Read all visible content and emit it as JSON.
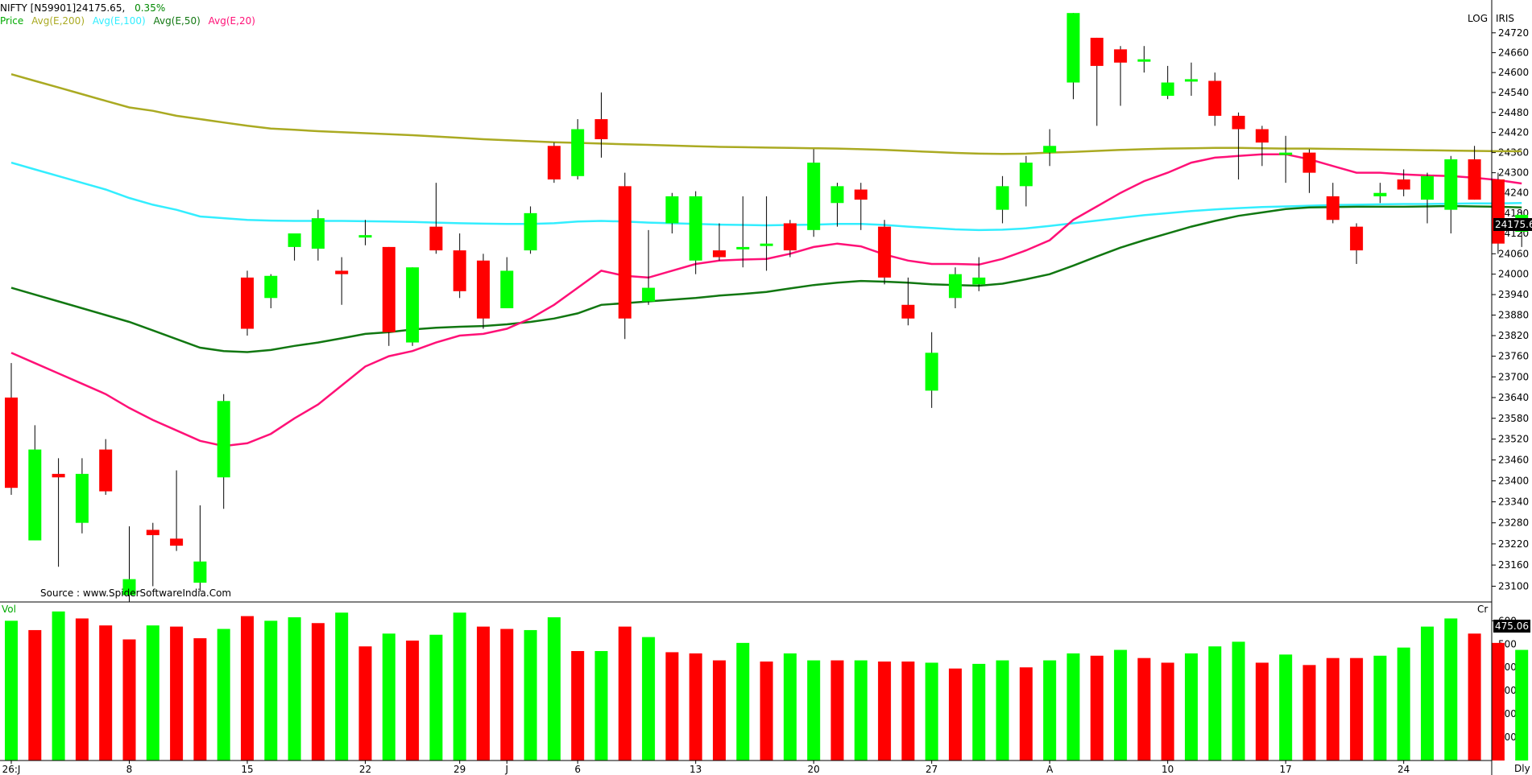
{
  "header": {
    "instrument": "NIFTY [N59901]24175.65,",
    "change": "0.35%",
    "legend_label": "Price",
    "ema200_label": "Avg(E,200)",
    "ema100_label": "Avg(E,100)",
    "ema50_label": "Avg(E,50)",
    "ema20_label": "Avg(E,20)"
  },
  "top_right": {
    "log": "LOG",
    "iris": "IRIS"
  },
  "source_text": "Source : www.SpiderSoftwareIndia.Com",
  "price_tag": "24175.6",
  "volume_tag": "475.06",
  "volume_label": "Vol",
  "volume_unit": "Cr",
  "period": "Dly",
  "colors": {
    "up": "#00ff00",
    "down": "#ff0000",
    "ema200": "#aaaa22",
    "ema100": "#33eeff",
    "ema50": "#117711",
    "ema20": "#ff1177",
    "instrument": "#000000",
    "change": "#008800",
    "price_label": "#00aa00"
  },
  "chart_data": [
    {
      "type": "candlestick",
      "title": "NIFTY [N59901]24175.65, 0.35%",
      "scale": "log",
      "ylim": [
        23060,
        24800
      ],
      "y_ticks": [
        23100,
        23160,
        23220,
        23280,
        23340,
        23400,
        23460,
        23520,
        23580,
        23640,
        23700,
        23760,
        23820,
        23880,
        23940,
        24000,
        24060,
        24120,
        24180,
        24240,
        24300,
        24360,
        24420,
        24480,
        24540,
        24600,
        24660,
        24720
      ],
      "x_tick_labels": [
        {
          "label": "26:J",
          "index": 0
        },
        {
          "label": "8",
          "index": 5
        },
        {
          "label": "15",
          "index": 10
        },
        {
          "label": "22",
          "index": 15
        },
        {
          "label": "29",
          "index": 19
        },
        {
          "label": "J",
          "index": 21
        },
        {
          "label": "6",
          "index": 24
        },
        {
          "label": "13",
          "index": 29
        },
        {
          "label": "20",
          "index": 34
        },
        {
          "label": "27",
          "index": 39
        },
        {
          "label": "A",
          "index": 44
        },
        {
          "label": "10",
          "index": 49
        },
        {
          "label": "17",
          "index": 54
        },
        {
          "label": "24",
          "index": 59
        }
      ],
      "candles": [
        {
          "o": 23640,
          "h": 23740,
          "l": 23360,
          "c": 23380
        },
        {
          "o": 23230,
          "h": 23560,
          "l": 23230,
          "c": 23490
        },
        {
          "o": 23420,
          "h": 23465,
          "l": 23155,
          "c": 23410
        },
        {
          "o": 23280,
          "h": 23465,
          "l": 23250,
          "c": 23420
        },
        {
          "o": 23490,
          "h": 23520,
          "l": 23360,
          "c": 23370
        },
        {
          "o": 23075,
          "h": 23270,
          "l": 23055,
          "c": 23120
        },
        {
          "o": 23260,
          "h": 23280,
          "l": 23100,
          "c": 23245
        },
        {
          "o": 23235,
          "h": 23430,
          "l": 23200,
          "c": 23215
        },
        {
          "o": 23110,
          "h": 23330,
          "l": 23085,
          "c": 23170
        },
        {
          "o": 23410,
          "h": 23650,
          "l": 23320,
          "c": 23630
        },
        {
          "o": 23990,
          "h": 24010,
          "l": 23820,
          "c": 23840
        },
        {
          "o": 23930,
          "h": 24000,
          "l": 23900,
          "c": 23995
        },
        {
          "o": 24080,
          "h": 24110,
          "l": 24040,
          "c": 24120
        },
        {
          "o": 24075,
          "h": 24190,
          "l": 24040,
          "c": 24165
        },
        {
          "o": 24010,
          "h": 24050,
          "l": 23910,
          "c": 24000
        },
        {
          "o": 24110,
          "h": 24160,
          "l": 24085,
          "c": 24115
        },
        {
          "o": 24080,
          "h": 24080,
          "l": 23790,
          "c": 23830
        },
        {
          "o": 23800,
          "h": 24020,
          "l": 23790,
          "c": 24020
        },
        {
          "o": 24140,
          "h": 24270,
          "l": 24060,
          "c": 24070
        },
        {
          "o": 24070,
          "h": 24120,
          "l": 23930,
          "c": 23950
        },
        {
          "o": 24040,
          "h": 24060,
          "l": 23840,
          "c": 23870
        },
        {
          "o": 23900,
          "h": 24050,
          "l": 23900,
          "c": 24010
        },
        {
          "o": 24070,
          "h": 24200,
          "l": 24060,
          "c": 24180
        },
        {
          "o": 24380,
          "h": 24390,
          "l": 24270,
          "c": 24280
        },
        {
          "o": 24290,
          "h": 24460,
          "l": 24280,
          "c": 24430
        },
        {
          "o": 24460,
          "h": 24540,
          "l": 24345,
          "c": 24400
        },
        {
          "o": 24260,
          "h": 24300,
          "l": 23810,
          "c": 23870
        },
        {
          "o": 23920,
          "h": 24130,
          "l": 23910,
          "c": 23960
        },
        {
          "o": 24150,
          "h": 24240,
          "l": 24120,
          "c": 24230
        },
        {
          "o": 24040,
          "h": 24245,
          "l": 24000,
          "c": 24230
        },
        {
          "o": 24070,
          "h": 24150,
          "l": 24040,
          "c": 24050
        },
        {
          "o": 24080,
          "h": 24230,
          "l": 24020,
          "c": 24080
        },
        {
          "o": 24090,
          "h": 24230,
          "l": 24010,
          "c": 24090
        },
        {
          "o": 24150,
          "h": 24160,
          "l": 24050,
          "c": 24070
        },
        {
          "o": 24130,
          "h": 24370,
          "l": 24110,
          "c": 24330
        },
        {
          "o": 24210,
          "h": 24270,
          "l": 24140,
          "c": 24260
        },
        {
          "o": 24250,
          "h": 24270,
          "l": 24130,
          "c": 24220
        },
        {
          "o": 24140,
          "h": 24160,
          "l": 23970,
          "c": 23990
        },
        {
          "o": 23910,
          "h": 23990,
          "l": 23850,
          "c": 23870
        },
        {
          "o": 23660,
          "h": 23830,
          "l": 23610,
          "c": 23770
        },
        {
          "o": 23930,
          "h": 24020,
          "l": 23900,
          "c": 24000
        },
        {
          "o": 23970,
          "h": 24050,
          "l": 23950,
          "c": 23990
        },
        {
          "o": 24190,
          "h": 24290,
          "l": 24150,
          "c": 24260
        },
        {
          "o": 24260,
          "h": 24350,
          "l": 24200,
          "c": 24330
        },
        {
          "o": 24360,
          "h": 24430,
          "l": 24320,
          "c": 24380
        },
        {
          "o": 24570,
          "h": 24780,
          "l": 24520,
          "c": 24780
        },
        {
          "o": 24705,
          "h": 24705,
          "l": 24440,
          "c": 24620
        },
        {
          "o": 24670,
          "h": 24680,
          "l": 24500,
          "c": 24630
        },
        {
          "o": 24640,
          "h": 24680,
          "l": 24600,
          "c": 24640
        },
        {
          "o": 24530,
          "h": 24620,
          "l": 24520,
          "c": 24570
        },
        {
          "o": 24580,
          "h": 24630,
          "l": 24530,
          "c": 24580
        },
        {
          "o": 24575,
          "h": 24600,
          "l": 24440,
          "c": 24470
        },
        {
          "o": 24470,
          "h": 24480,
          "l": 24280,
          "c": 24430
        },
        {
          "o": 24430,
          "h": 24440,
          "l": 24320,
          "c": 24390
        },
        {
          "o": 24360,
          "h": 24410,
          "l": 24270,
          "c": 24360
        },
        {
          "o": 24360,
          "h": 24370,
          "l": 24240,
          "c": 24300
        },
        {
          "o": 24230,
          "h": 24270,
          "l": 24150,
          "c": 24160
        },
        {
          "o": 24140,
          "h": 24150,
          "l": 24030,
          "c": 24070
        },
        {
          "o": 24230,
          "h": 24270,
          "l": 24210,
          "c": 24240
        },
        {
          "o": 24280,
          "h": 24310,
          "l": 24230,
          "c": 24250
        },
        {
          "o": 24220,
          "h": 24300,
          "l": 24150,
          "c": 24290
        },
        {
          "o": 24190,
          "h": 24350,
          "l": 24120,
          "c": 24340
        },
        {
          "o": 24340,
          "h": 24380,
          "l": 24220,
          "c": 24220
        },
        {
          "o": 24280,
          "h": 24300,
          "l": 24060,
          "c": 24090
        },
        {
          "o": 24125,
          "h": 24185,
          "l": 24080,
          "c": 24175
        }
      ],
      "series": [
        {
          "name": "Avg(E,200)",
          "values": [
            24595,
            24575,
            24555,
            24535,
            24515,
            24495,
            24485,
            24470,
            24460,
            24450,
            24440,
            24432,
            24428,
            24424,
            24421,
            24418,
            24415,
            24412,
            24408,
            24404,
            24400,
            24397,
            24394,
            24391,
            24389,
            24387,
            24385,
            24383,
            24381,
            24379,
            24377,
            24376,
            24375,
            24374,
            24373,
            24372,
            24370,
            24368,
            24365,
            24362,
            24359,
            24357,
            24356,
            24357,
            24360,
            24362,
            24365,
            24368,
            24370,
            24372,
            24373,
            24374,
            24374,
            24373,
            24372,
            24372,
            24371,
            24370,
            24369,
            24368,
            24367,
            24366,
            24365,
            24364,
            24364
          ]
        },
        {
          "name": "Avg(E,100)",
          "values": [
            24330,
            24310,
            24290,
            24270,
            24250,
            24225,
            24205,
            24190,
            24170,
            24165,
            24160,
            24158,
            24157,
            24157,
            24157,
            24156,
            24155,
            24154,
            24152,
            24150,
            24149,
            24148,
            24148,
            24150,
            24155,
            24157,
            24155,
            24152,
            24150,
            24148,
            24146,
            24145,
            24144,
            24145,
            24146,
            24148,
            24148,
            24145,
            24140,
            24136,
            24132,
            24130,
            24131,
            24135,
            24142,
            24150,
            24158,
            24166,
            24174,
            24180,
            24186,
            24191,
            24195,
            24198,
            24200,
            24202,
            24204,
            24205,
            24206,
            24207,
            24207,
            24208,
            24209,
            24209,
            24210
          ]
        },
        {
          "name": "Avg(E,50)",
          "values": [
            23960,
            23940,
            23920,
            23900,
            23880,
            23860,
            23835,
            23810,
            23785,
            23775,
            23772,
            23778,
            23790,
            23800,
            23812,
            23825,
            23830,
            23838,
            23843,
            23846,
            23848,
            23853,
            23860,
            23870,
            23885,
            23910,
            23915,
            23920,
            23925,
            23930,
            23937,
            23942,
            23948,
            23958,
            23968,
            23975,
            23980,
            23978,
            23975,
            23970,
            23968,
            23966,
            23972,
            23985,
            24000,
            24025,
            24052,
            24078,
            24100,
            24120,
            24140,
            24157,
            24172,
            24182,
            24192,
            24197,
            24198,
            24199,
            24199,
            24199,
            24200,
            24201,
            24200,
            24199,
            24197
          ]
        },
        {
          "name": "Avg(E,20)",
          "values": [
            23770,
            23740,
            23710,
            23680,
            23650,
            23610,
            23575,
            23545,
            23515,
            23500,
            23508,
            23535,
            23580,
            23620,
            23675,
            23730,
            23760,
            23775,
            23800,
            23820,
            23825,
            23840,
            23870,
            23910,
            23960,
            24010,
            23995,
            23990,
            24010,
            24030,
            24040,
            24043,
            24045,
            24060,
            24080,
            24090,
            24082,
            24058,
            24040,
            24030,
            24030,
            24028,
            24045,
            24070,
            24100,
            24160,
            24200,
            24240,
            24275,
            24300,
            24330,
            24345,
            24350,
            24355,
            24355,
            24340,
            24320,
            24300,
            24300,
            24295,
            24292,
            24290,
            24285,
            24278,
            24268
          ]
        }
      ]
    },
    {
      "type": "bar",
      "title": "Vol",
      "ylabel": "Cr",
      "ylim": [
        0,
        660
      ],
      "y_ticks": [
        100,
        200,
        300,
        400,
        500,
        600
      ],
      "values": [
        600,
        560,
        640,
        610,
        580,
        520,
        580,
        575,
        525,
        565,
        620,
        600,
        615,
        590,
        635,
        490,
        545,
        515,
        540,
        635,
        575,
        565,
        560,
        615,
        470,
        470,
        575,
        530,
        465,
        460,
        430,
        505,
        425,
        460,
        430,
        430,
        430,
        425,
        425,
        420,
        395,
        415,
        430,
        400,
        430,
        460,
        450,
        475,
        440,
        420,
        460,
        490,
        510,
        420,
        455,
        410,
        440,
        440,
        450,
        485,
        575,
        610,
        545,
        505,
        475
      ],
      "directions": [
        "up",
        "down",
        "up",
        "down",
        "down",
        "down",
        "up",
        "down",
        "down",
        "up",
        "down",
        "up",
        "up",
        "down",
        "up",
        "down",
        "up",
        "down",
        "up",
        "up",
        "down",
        "down",
        "up",
        "up",
        "down",
        "up",
        "down",
        "up",
        "down",
        "down",
        "down",
        "up",
        "down",
        "up",
        "up",
        "down",
        "up",
        "down",
        "down",
        "up",
        "down",
        "up",
        "up",
        "down",
        "up",
        "up",
        "down",
        "up",
        "down",
        "down",
        "up",
        "up",
        "up",
        "down",
        "up",
        "down",
        "down",
        "down",
        "up",
        "up",
        "up",
        "up",
        "down",
        "down",
        "up"
      ]
    }
  ]
}
